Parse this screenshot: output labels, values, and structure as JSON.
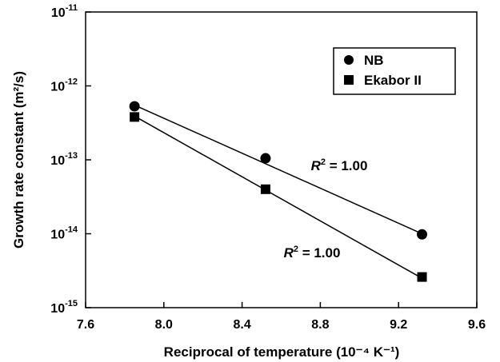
{
  "chart_data": {
    "type": "scatter",
    "title": "",
    "xlabel": "Reciprocal of temperature (10⁻⁴ K⁻¹)",
    "ylabel": "Growth rate constant (m²/s)",
    "xlim": [
      7.6,
      9.6
    ],
    "ylim": [
      1e-15,
      1e-11
    ],
    "yscale": "log",
    "x_ticks": [
      "7.6",
      "8.0",
      "8.4",
      "8.8",
      "9.2",
      "9.6"
    ],
    "y_ticks": [
      {
        "base": "10",
        "exp": "-15"
      },
      {
        "base": "10",
        "exp": "-14"
      },
      {
        "base": "10",
        "exp": "-13"
      },
      {
        "base": "10",
        "exp": "-12"
      },
      {
        "base": "10",
        "exp": "-11"
      }
    ],
    "grid": false,
    "legend_position": "top-right",
    "series": [
      {
        "name": "NB",
        "marker": "circle",
        "x": [
          7.85,
          8.52,
          9.32
        ],
        "y": [
          5.3e-13,
          1.05e-13,
          9.8e-15
        ],
        "fit_line": {
          "x": [
            7.85,
            9.32
          ],
          "y": [
            5.5e-13,
            1e-14
          ]
        },
        "annotation": {
          "italic": "R",
          "sup": "2",
          "text": " = 1.00"
        }
      },
      {
        "name": "Ekabor II",
        "marker": "square",
        "x": [
          7.85,
          8.52,
          9.32
        ],
        "y": [
          3.8e-13,
          4e-14,
          2.6e-15
        ],
        "fit_line": {
          "x": [
            7.85,
            9.32
          ],
          "y": [
            3.9e-13,
            2.5e-15
          ]
        },
        "annotation": {
          "italic": "R",
          "sup": "2",
          "text": " = 1.00"
        }
      }
    ]
  }
}
